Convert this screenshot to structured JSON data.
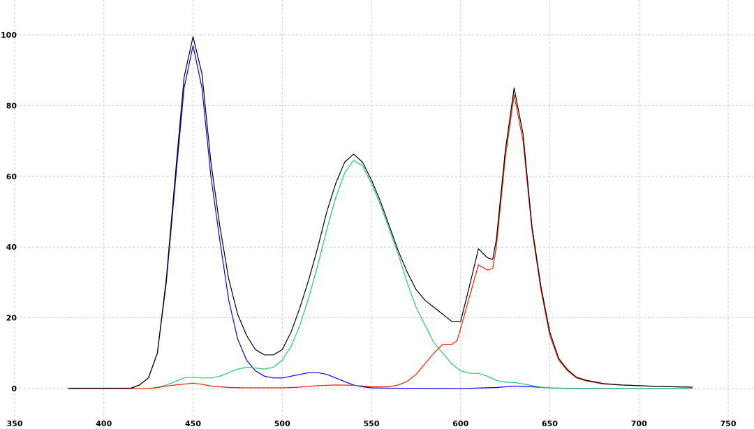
{
  "chart_data": {
    "type": "line",
    "title": "",
    "xlabel": "",
    "ylabel": "",
    "xlim": [
      350,
      750
    ],
    "ylim": [
      0,
      100
    ],
    "xticks": [
      350,
      400,
      450,
      500,
      550,
      600,
      650,
      700,
      750
    ],
    "yticks": [
      0,
      20,
      40,
      60,
      80,
      100
    ],
    "grid": true,
    "legend": "none",
    "series": [
      {
        "color": "#0000ff",
        "points": [
          [
            380,
            0
          ],
          [
            415,
            0
          ],
          [
            420,
            1
          ],
          [
            425,
            3
          ],
          [
            430,
            10
          ],
          [
            435,
            30
          ],
          [
            440,
            58
          ],
          [
            445,
            85
          ],
          [
            450,
            97
          ],
          [
            455,
            85
          ],
          [
            460,
            60
          ],
          [
            465,
            42
          ],
          [
            470,
            25
          ],
          [
            475,
            14
          ],
          [
            480,
            8
          ],
          [
            485,
            5
          ],
          [
            490,
            3.5
          ],
          [
            495,
            3
          ],
          [
            500,
            3
          ],
          [
            505,
            3.5
          ],
          [
            510,
            4
          ],
          [
            515,
            4.5
          ],
          [
            520,
            4.5
          ],
          [
            525,
            4
          ],
          [
            530,
            3
          ],
          [
            535,
            2
          ],
          [
            540,
            1
          ],
          [
            545,
            0.5
          ],
          [
            550,
            0.2
          ],
          [
            560,
            0.1
          ],
          [
            600,
            0
          ],
          [
            620,
            0.3
          ],
          [
            630,
            0.7
          ],
          [
            640,
            0.5
          ],
          [
            650,
            0.2
          ],
          [
            660,
            0
          ],
          [
            730,
            0
          ]
        ]
      },
      {
        "color": "#22cc66",
        "points": [
          [
            425,
            0
          ],
          [
            430,
            0.3
          ],
          [
            435,
            1
          ],
          [
            440,
            2
          ],
          [
            445,
            3
          ],
          [
            450,
            3.2
          ],
          [
            455,
            3
          ],
          [
            460,
            3
          ],
          [
            465,
            3.5
          ],
          [
            470,
            4.5
          ],
          [
            475,
            5.5
          ],
          [
            480,
            6
          ],
          [
            485,
            5.8
          ],
          [
            490,
            5.5
          ],
          [
            495,
            6
          ],
          [
            500,
            8
          ],
          [
            505,
            12
          ],
          [
            510,
            18
          ],
          [
            515,
            26
          ],
          [
            520,
            35
          ],
          [
            525,
            45
          ],
          [
            530,
            54
          ],
          [
            535,
            61
          ],
          [
            540,
            64.5
          ],
          [
            545,
            63
          ],
          [
            550,
            58
          ],
          [
            555,
            52
          ],
          [
            560,
            45
          ],
          [
            565,
            38
          ],
          [
            570,
            30
          ],
          [
            575,
            23
          ],
          [
            580,
            18
          ],
          [
            585,
            13
          ],
          [
            590,
            10
          ],
          [
            595,
            7
          ],
          [
            600,
            5
          ],
          [
            605,
            4.3
          ],
          [
            610,
            4.3
          ],
          [
            615,
            3.5
          ],
          [
            620,
            2.3
          ],
          [
            625,
            1.8
          ],
          [
            630,
            1.7
          ],
          [
            635,
            1.3
          ],
          [
            640,
            0.8
          ],
          [
            645,
            0.4
          ],
          [
            650,
            0.2
          ],
          [
            660,
            0.05
          ],
          [
            730,
            0
          ]
        ]
      },
      {
        "color": "#ee2200",
        "points": [
          [
            380,
            0
          ],
          [
            425,
            0
          ],
          [
            430,
            0.3
          ],
          [
            440,
            1
          ],
          [
            450,
            1.5
          ],
          [
            455,
            1.2
          ],
          [
            460,
            0.7
          ],
          [
            470,
            0.3
          ],
          [
            480,
            0.2
          ],
          [
            500,
            0.2
          ],
          [
            510,
            0.4
          ],
          [
            520,
            0.8
          ],
          [
            530,
            1
          ],
          [
            540,
            0.9
          ],
          [
            550,
            0.5
          ],
          [
            560,
            0.5
          ],
          [
            565,
            1
          ],
          [
            570,
            2
          ],
          [
            575,
            4
          ],
          [
            580,
            7
          ],
          [
            585,
            10
          ],
          [
            590,
            12.5
          ],
          [
            595,
            12.5
          ],
          [
            598,
            13.5
          ],
          [
            600,
            17
          ],
          [
            605,
            26
          ],
          [
            610,
            35
          ],
          [
            615,
            33.5
          ],
          [
            618,
            34
          ],
          [
            620,
            40
          ],
          [
            625,
            65
          ],
          [
            630,
            83
          ],
          [
            635,
            70
          ],
          [
            640,
            45
          ],
          [
            645,
            28
          ],
          [
            650,
            15
          ],
          [
            655,
            8
          ],
          [
            660,
            5
          ],
          [
            665,
            3
          ],
          [
            670,
            2.2
          ],
          [
            680,
            1.3
          ],
          [
            690,
            1
          ],
          [
            700,
            0.8
          ],
          [
            710,
            0.6
          ],
          [
            730,
            0.4
          ]
        ]
      },
      {
        "color": "#000000",
        "points": [
          [
            380,
            0.1
          ],
          [
            415,
            0.1
          ],
          [
            420,
            1
          ],
          [
            425,
            3
          ],
          [
            430,
            10
          ],
          [
            435,
            31
          ],
          [
            440,
            60
          ],
          [
            445,
            88
          ],
          [
            450,
            99.5
          ],
          [
            455,
            89
          ],
          [
            460,
            64
          ],
          [
            465,
            46
          ],
          [
            470,
            31
          ],
          [
            475,
            21
          ],
          [
            480,
            15
          ],
          [
            485,
            11
          ],
          [
            490,
            9.5
          ],
          [
            495,
            9.5
          ],
          [
            500,
            11
          ],
          [
            505,
            16
          ],
          [
            510,
            23
          ],
          [
            515,
            31
          ],
          [
            520,
            40
          ],
          [
            525,
            50
          ],
          [
            530,
            58
          ],
          [
            535,
            64
          ],
          [
            540,
            66.3
          ],
          [
            545,
            64
          ],
          [
            550,
            59
          ],
          [
            555,
            53
          ],
          [
            560,
            46
          ],
          [
            565,
            39
          ],
          [
            570,
            33
          ],
          [
            575,
            28
          ],
          [
            580,
            25
          ],
          [
            585,
            23
          ],
          [
            590,
            21
          ],
          [
            595,
            19
          ],
          [
            600,
            19
          ],
          [
            605,
            29
          ],
          [
            610,
            39.5
          ],
          [
            615,
            37
          ],
          [
            618,
            36.5
          ],
          [
            620,
            42
          ],
          [
            625,
            67
          ],
          [
            630,
            85
          ],
          [
            635,
            72
          ],
          [
            640,
            46
          ],
          [
            645,
            29
          ],
          [
            650,
            16
          ],
          [
            655,
            8.5
          ],
          [
            660,
            5.3
          ],
          [
            665,
            3.2
          ],
          [
            670,
            2.4
          ],
          [
            680,
            1.4
          ],
          [
            690,
            1
          ],
          [
            700,
            0.8
          ],
          [
            710,
            0.6
          ],
          [
            730,
            0.4
          ]
        ]
      }
    ]
  }
}
